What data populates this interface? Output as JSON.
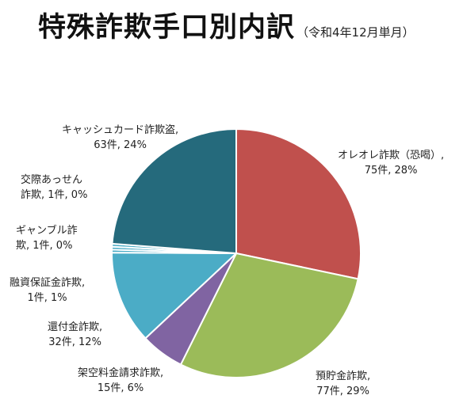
{
  "title": {
    "main": "特殊詐欺手口別内訳",
    "sub": "（令和4年12月単月）"
  },
  "chart_data": {
    "type": "pie",
    "start": "12 o'clock",
    "direction": "clockwise",
    "slices": [
      {
        "name": "オレオレ詐欺（恐喝）",
        "count": 75,
        "value_label": "75件, 28%",
        "percent": 28,
        "color": "#C0504D"
      },
      {
        "name": "預貯金詐欺",
        "count": 77,
        "value_label": "77件, 29%",
        "percent": 29,
        "color": "#9BBB59"
      },
      {
        "name": "架空料金請求詐欺",
        "count": 15,
        "value_label": "15件, 6%",
        "percent": 6,
        "color": "#8064A2"
      },
      {
        "name": "還付金詐欺",
        "count": 32,
        "value_label": "32件, 12%",
        "percent": 12,
        "color": "#4BACC6"
      },
      {
        "name": "融資保証金詐欺",
        "count": 1,
        "value_label": "1件, 1%",
        "percent": 1,
        "color": "#4BACC6"
      },
      {
        "name": "ギャンブル詐欺",
        "count": 1,
        "value_label": "1件, 0%",
        "percent": 0,
        "color": "#4BACC6"
      },
      {
        "name": "交際あっせん詐欺",
        "count": 1,
        "value_label": "1件, 0%",
        "percent": 0,
        "color": "#4BACC6"
      },
      {
        "name": "キャッシュカード詐欺盗",
        "count": 63,
        "value_label": "63件, 24%",
        "percent": 24,
        "color": "#256A7C"
      }
    ]
  },
  "labels": [
    {
      "line1": "オレオレ詐欺（恐喝）,",
      "line2": "75件, 28%"
    },
    {
      "line1": "預貯金詐欺,",
      "line2": "77件, 29%"
    },
    {
      "line1": "架空料金請求詐欺,",
      "line2": "15件, 6%"
    },
    {
      "line1": "還付金詐欺,",
      "line2": "32件, 12%"
    },
    {
      "line1": "融資保証金詐欺,",
      "line2": "1件, 1%"
    },
    {
      "line1": "ギャンブル詐",
      "line2": "欺, 1件, 0%"
    },
    {
      "line1": "交際あっせん",
      "line2": "詐欺, 1件, 0%"
    },
    {
      "line1": "キャッシュカード詐欺盗,",
      "line2": "63件, 24%"
    }
  ]
}
